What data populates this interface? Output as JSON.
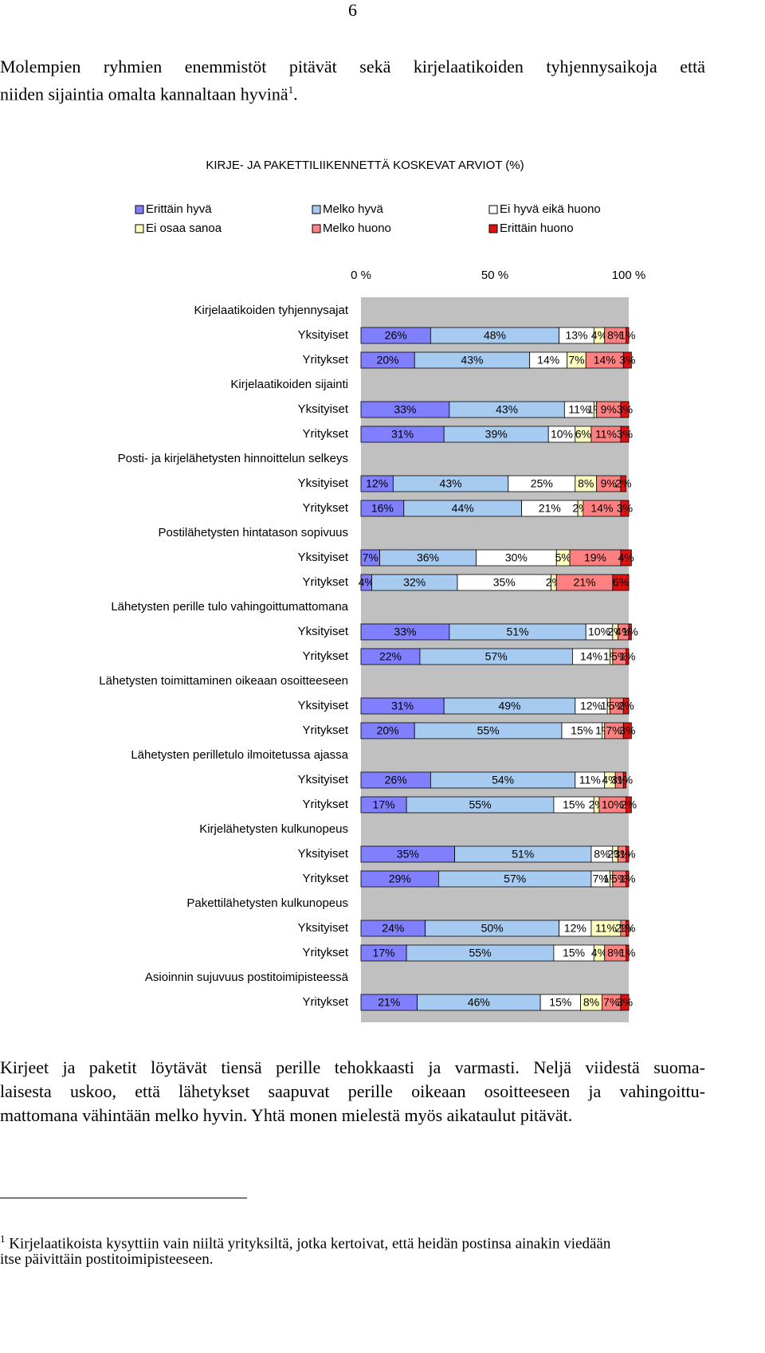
{
  "page_number": "6",
  "intro": {
    "lines": [
      "Molempien ryhmien enemmistöt pitävät sekä kirjelaatikoiden tyhjennysaikoja että",
      "niiden sijaintia omalta kannaltaan hyvinä"
    ],
    "footnote_ref": "1",
    "end": "."
  },
  "chart_data": {
    "type": "stacked-bar-horizontal",
    "title": "KIRJE- JA PAKETTILIIKENNETTÄ KOSKEVAT ARVIOT (%)",
    "groups": [
      {
        "label": "Kirjelaatikoiden tyhjennysajat",
        "categories": [
          "Yksityiset",
          "Yritykset"
        ]
      },
      {
        "label": "Kirjelaatikoiden sijainti",
        "categories": [
          "Yksityiset",
          "Yritykset"
        ]
      },
      {
        "label": "Posti- ja kirjelähetysten hinnoittelun selkeys",
        "categories": [
          "Yksityiset",
          "Yritykset"
        ]
      },
      {
        "label": "Postilähetysten hintatason sopivuus",
        "categories": [
          "Yksityiset",
          "Yritykset"
        ]
      },
      {
        "label": "Lähetysten perille tulo vahingoittumattomana",
        "categories": [
          "Yksityiset",
          "Yritykset"
        ]
      },
      {
        "label": "Lähetysten toimittaminen oikeaan osoitteeseen",
        "categories": [
          "Yksityiset",
          "Yritykset"
        ]
      },
      {
        "label": "Lähetysten perilletulo ilmoitetussa ajassa",
        "categories": [
          "Yksityiset",
          "Yritykset"
        ]
      },
      {
        "label": "Kirjelähetysten kulkunopeus",
        "categories": [
          "Yksityiset",
          "Yritykset"
        ]
      },
      {
        "label": "Pakettilähetysten kulkunopeus",
        "categories": [
          "Yksityiset",
          "Yritykset"
        ]
      },
      {
        "label": "Asioinnin sujuvuus postitoimipisteessä",
        "categories": [
          "Yritykset"
        ]
      }
    ],
    "series": [
      {
        "name": "Erittäin hyvä",
        "color": "#8080ff",
        "values": [
          26,
          20,
          33,
          31,
          12,
          16,
          7,
          4,
          33,
          22,
          31,
          20,
          26,
          17,
          35,
          29,
          24,
          17,
          21
        ],
        "value_labels": [
          "26%",
          "20%",
          "33%",
          "31%",
          "12%",
          "16%",
          "7%",
          "4%",
          "33%",
          "22%",
          "31%",
          "20%",
          "26%",
          "17%",
          "35%",
          "29%",
          "24%",
          "17%",
          "21%"
        ]
      },
      {
        "name": "Melko hyvä",
        "color": "#a6caf0",
        "values": [
          48,
          43,
          43,
          39,
          43,
          44,
          36,
          32,
          51,
          57,
          49,
          55,
          54,
          55,
          51,
          57,
          50,
          55,
          46
        ],
        "value_labels": [
          "48%",
          "43%",
          "43%",
          "39%",
          "43%",
          "44%",
          "36%",
          "32%",
          "51%",
          "57%",
          "49%",
          "55%",
          "54%",
          "55%",
          "51%",
          "57%",
          "50%",
          "55%",
          "46%"
        ]
      },
      {
        "name": "Ei hyvä eikä huono",
        "color": "#ffffff",
        "values": [
          13,
          14,
          11,
          10,
          25,
          21,
          30,
          35,
          10,
          14,
          12,
          15,
          11,
          15,
          8,
          7,
          12,
          15,
          15
        ],
        "value_labels": [
          "13%",
          "14%",
          "11%",
          "10%",
          "25%",
          "21%",
          "30%",
          "35%",
          "10%",
          "14%",
          "12%",
          "15%",
          "11%",
          "15%",
          "8%",
          "7%",
          "12%",
          "15%",
          "15%"
        ]
      },
      {
        "name": "Ei osaa sanoa",
        "color": "#ffffc0",
        "values": [
          4,
          7,
          1,
          6,
          8,
          2,
          5,
          2,
          2,
          1,
          1,
          1,
          4,
          2,
          2,
          1,
          11,
          4,
          8
        ],
        "value_labels": [
          "4%",
          "7%",
          "1%",
          "6%",
          "8%",
          "2%",
          "5%",
          "2%",
          "2%",
          "1%",
          "1%",
          "1%",
          "4%",
          "2%",
          "2%",
          "1%",
          "11%",
          "4%",
          "8%"
        ]
      },
      {
        "name": "Melko huono",
        "color": "#ff8080",
        "values": [
          8,
          14,
          9,
          11,
          9,
          14,
          19,
          21,
          4,
          5,
          5,
          7,
          3,
          10,
          3,
          5,
          2,
          8,
          7
        ],
        "value_labels": [
          "8%",
          "14%",
          "9%",
          "11%",
          "9%",
          "14%",
          "19%",
          "21%",
          "4%",
          "5%",
          "5%",
          "7%",
          "3%",
          "10%",
          "3%",
          "5%",
          "2%",
          "8%",
          "7%"
        ]
      },
      {
        "name": "Erittäin huono",
        "color": "#e01010",
        "values": [
          1,
          3,
          3,
          3,
          2,
          3,
          4,
          6,
          1,
          1,
          2,
          3,
          1,
          2,
          1,
          1,
          1,
          1,
          3
        ],
        "value_labels": [
          "1%",
          "3%",
          "3%",
          "3%",
          "2%",
          "3%",
          "4%",
          "6%",
          "1%",
          "1%",
          "2%",
          "3%",
          "1%",
          "2%",
          "1%",
          "1%",
          "1%",
          "1%",
          "3%"
        ]
      }
    ],
    "xlim": [
      0,
      100
    ],
    "xticks": [
      {
        "value": 0,
        "label": "0 %"
      },
      {
        "value": 50,
        "label": "50 %"
      },
      {
        "value": 100,
        "label": "100 %"
      }
    ],
    "plot_background": "#c0c0c0"
  },
  "body": {
    "lines": [
      "Kirjeet ja paketit löytävät tiensä perille tehokkaasti ja varmasti. Neljä viidestä suoma-",
      "laisesta uskoo, että lähetykset saapuvat perille oikeaan osoitteeseen ja vahingoittu-",
      "mattomana vähintään melko hyvin. Yhtä monen mielestä myös aikataulut pitävät."
    ]
  },
  "footnote": {
    "marker": "1",
    "lines": [
      "Kirjelaatikoista kysyttiin vain niiltä yrityksiltä, jotka kertoivat, että heidän postinsa ainakin viedään",
      "itse päivittäin postitoimipisteeseen."
    ]
  }
}
